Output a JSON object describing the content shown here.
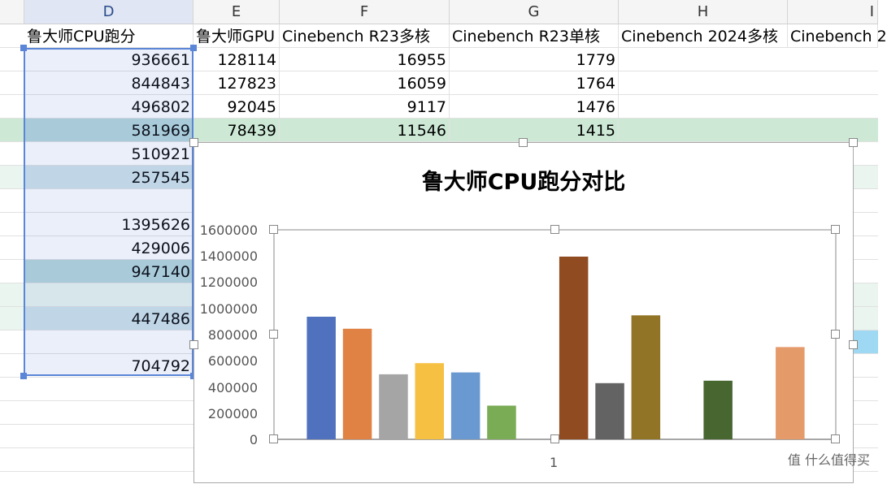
{
  "columns": [
    {
      "letter": "D",
      "header": "鲁大师CPU跑分"
    },
    {
      "letter": "E",
      "header": "鲁大师GPU"
    },
    {
      "letter": "F",
      "header": "Cinebench R23多核"
    },
    {
      "letter": "G",
      "header": "Cinebench R23单核"
    },
    {
      "letter": "H",
      "header": "Cinebench 2024多核"
    },
    {
      "letter": "I",
      "header": "Cinebench 2"
    }
  ],
  "rows": [
    {
      "d": "936661",
      "e": "128114",
      "f": "16955",
      "g": "1779"
    },
    {
      "d": "844843",
      "e": "127823",
      "f": "16059",
      "g": "1764"
    },
    {
      "d": "496802",
      "e": "92045",
      "f": "9117",
      "g": "1476"
    },
    {
      "d": "581969",
      "e": "78439",
      "f": "11546",
      "g": "1415"
    },
    {
      "d": "510921"
    },
    {
      "d": "257545"
    },
    {
      "d": ""
    },
    {
      "d": "1395626"
    },
    {
      "d": "429006"
    },
    {
      "d": "947140"
    },
    {
      "d": ""
    },
    {
      "d": "447486"
    },
    {
      "d": ""
    },
    {
      "d": "704792"
    }
  ],
  "watermark": "值 什么值得买",
  "chart_data": {
    "type": "bar",
    "title": "鲁大师CPU跑分对比",
    "categories": [
      "1"
    ],
    "ylim": [
      0,
      1600000
    ],
    "yticks": [
      "0",
      "200000",
      "400000",
      "600000",
      "800000",
      "1000000",
      "1200000",
      "1400000",
      "1600000"
    ],
    "grid": false,
    "series": [
      {
        "values": [
          936661
        ],
        "color": "#4f71be"
      },
      {
        "values": [
          844843
        ],
        "color": "#df8244"
      },
      {
        "values": [
          496802
        ],
        "color": "#a5a5a5"
      },
      {
        "values": [
          581969
        ],
        "color": "#f6c143"
      },
      {
        "values": [
          510921
        ],
        "color": "#6a98d0"
      },
      {
        "values": [
          257545
        ],
        "color": "#7aab55"
      },
      {
        "values": [
          0
        ],
        "color": "#ffffff"
      },
      {
        "values": [
          1395626
        ],
        "color": "#914b21"
      },
      {
        "values": [
          429006
        ],
        "color": "#636363"
      },
      {
        "values": [
          947140
        ],
        "color": "#917425"
      },
      {
        "values": [
          0
        ],
        "color": "#ffffff"
      },
      {
        "values": [
          447486
        ],
        "color": "#476630"
      },
      {
        "values": [
          0
        ],
        "color": "#ffffff"
      },
      {
        "values": [
          704792
        ],
        "color": "#e59a69"
      }
    ]
  }
}
